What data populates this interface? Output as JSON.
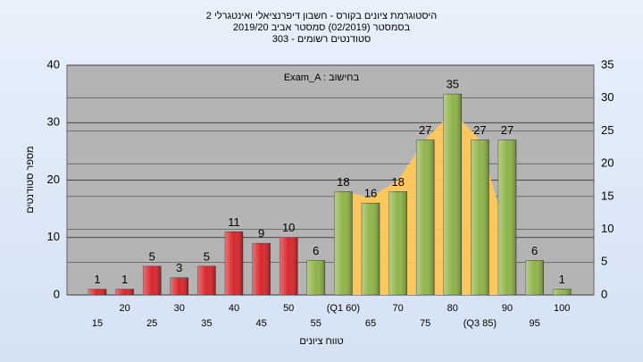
{
  "chart_data": {
    "type": "bar",
    "title": [
      "היסטוגרמת ציונים בקורס - חשבון דיפרנציאלי ואינטגרלי 2",
      "בסמסטר  (02/2019)  סמסטר אביב 2019/20",
      "סטודנטים רשומים - 303"
    ],
    "annotation": "Exam_A : בחישוב",
    "x_label": "טווח ציונים",
    "y_label": "מספר סטודנטים",
    "categories": [
      "15",
      "20",
      "25",
      "30",
      "35",
      "40",
      "45",
      "50",
      "55",
      "(Q1 60)",
      "65",
      "70",
      "75",
      "80",
      "(Q3 85)",
      "90",
      "95",
      "100"
    ],
    "values": [
      1,
      1,
      5,
      3,
      5,
      11,
      9,
      10,
      6,
      18,
      16,
      18,
      27,
      35,
      27,
      27,
      6,
      1
    ],
    "colors": [
      "#d8262b",
      "#d8262b",
      "#d8262b",
      "#d8262b",
      "#d8262b",
      "#d8262b",
      "#d8262b",
      "#d8262b",
      "#8fb449",
      "#8fb449",
      "#8fb449",
      "#8fb449",
      "#8fb449",
      "#8fb449",
      "#8fb449",
      "#8fb449",
      "#8fb449",
      "#8fb449"
    ],
    "area": {
      "color": "#ffc85a",
      "values": [
        null,
        null,
        null,
        null,
        null,
        null,
        null,
        null,
        null,
        18,
        17,
        20,
        27,
        32,
        27,
        10,
        null,
        null
      ]
    },
    "ylim": [
      0,
      40
    ],
    "yticks": [
      0,
      10,
      20,
      30,
      40
    ],
    "y2lim": [
      0,
      35
    ],
    "y2ticks": [
      0,
      5,
      10,
      15,
      20,
      25,
      30,
      35
    ],
    "grid": true
  }
}
